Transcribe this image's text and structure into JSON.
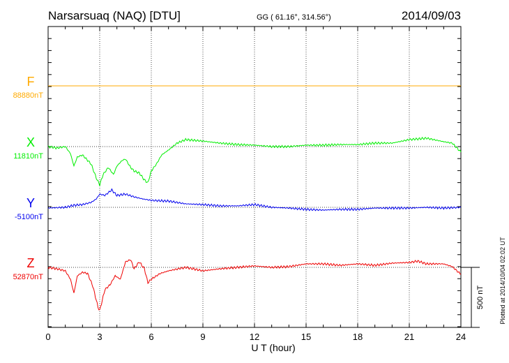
{
  "header": {
    "station": "Narsarsuaq (NAQ)  [DTU]",
    "coords": "GG ( 61.16°, 314.56°)",
    "date": "2014/09/03"
  },
  "footer": {
    "plotted": "Plotted at 2014/10/04 02:02 UT",
    "scale_label": "500 nT"
  },
  "chart_data": {
    "type": "line",
    "title": "Narsarsuaq (NAQ)  [DTU]",
    "xlabel": "U T (hour)",
    "xlim": [
      0,
      24
    ],
    "xticks": [
      "0",
      "3",
      "6",
      "9",
      "12",
      "15",
      "18",
      "21",
      "24"
    ],
    "scale_nT": 500,
    "grid": true,
    "series": [
      {
        "name": "F",
        "baseline_label": "88880nT",
        "color": "#ffaa00",
        "hours": [
          0,
          24
        ],
        "values": [
          0,
          0
        ]
      },
      {
        "name": "X",
        "baseline_label": "11810nT",
        "color": "#00ee00",
        "hours": [
          0,
          0.5,
          1,
          1.3,
          1.5,
          1.7,
          2,
          2.5,
          2.8,
          3,
          3.2,
          3.5,
          3.8,
          4,
          4.3,
          4.5,
          4.8,
          5,
          5.3,
          5.6,
          5.8,
          6,
          6.3,
          6.6,
          7,
          7.5,
          8,
          9,
          10,
          11,
          12,
          13,
          14,
          15,
          16,
          17,
          18,
          19,
          20,
          21,
          22,
          23,
          23.5,
          24
        ],
        "values": [
          0,
          -12,
          0,
          -58,
          -162,
          -87,
          -70,
          -145,
          -261,
          -319,
          -232,
          -174,
          -232,
          -162,
          -116,
          -104,
          -174,
          -203,
          -220,
          -278,
          -302,
          -203,
          -145,
          -70,
          -29,
          29,
          58,
          46,
          29,
          17,
          12,
          0,
          0,
          12,
          12,
          17,
          17,
          29,
          29,
          58,
          70,
          41,
          29,
          -46
        ]
      },
      {
        "name": "Y",
        "baseline_label": "-5100nT",
        "color": "#0000ee",
        "hours": [
          0,
          1,
          1.5,
          2,
          2.5,
          2.8,
          3,
          3.3,
          3.7,
          4,
          4.5,
          5,
          5.5,
          6,
          7,
          8,
          9,
          10,
          11,
          12,
          13,
          14,
          15,
          16,
          17,
          18,
          19,
          20,
          21,
          22,
          23,
          24
        ],
        "values": [
          -6,
          0,
          17,
          23,
          41,
          70,
          110,
          99,
          145,
          99,
          110,
          87,
          70,
          58,
          52,
          29,
          23,
          12,
          12,
          23,
          0,
          -6,
          -17,
          -23,
          -17,
          -17,
          -6,
          -6,
          -6,
          0,
          -6,
          0
        ]
      },
      {
        "name": "Z",
        "baseline_label": "52870nT",
        "color": "#ee0000",
        "hours": [
          0,
          0.5,
          1,
          1.3,
          1.5,
          1.7,
          2,
          2.3,
          2.6,
          2.9,
          3,
          3.3,
          3.6,
          3.9,
          4.2,
          4.5,
          4.8,
          5,
          5.3,
          5.6,
          5.8,
          6,
          6.5,
          7,
          8,
          9,
          10,
          11,
          12,
          13,
          14,
          15,
          16,
          17,
          18,
          19,
          20,
          21,
          21.5,
          22,
          23,
          23.5,
          24
        ],
        "values": [
          0,
          -12,
          -29,
          -99,
          -215,
          -70,
          -41,
          -52,
          -157,
          -331,
          -360,
          -186,
          -145,
          -70,
          -99,
          46,
          64,
          -12,
          46,
          -12,
          -128,
          -99,
          -52,
          -29,
          0,
          -29,
          -12,
          0,
          12,
          0,
          6,
          29,
          29,
          17,
          29,
          17,
          35,
          41,
          52,
          29,
          29,
          6,
          -58
        ]
      }
    ]
  }
}
